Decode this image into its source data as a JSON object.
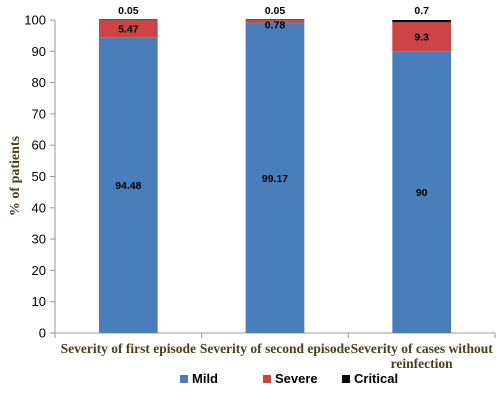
{
  "chart_data": {
    "type": "bar",
    "stacked": true,
    "categories": [
      [
        "Severity of first episode"
      ],
      [
        "Severity of second episode"
      ],
      [
        "Severity of cases without",
        "reinfection"
      ]
    ],
    "series": [
      {
        "name": "Mild",
        "color": "#4a7ebb",
        "values": [
          94.48,
          99.17,
          90
        ],
        "labels": [
          "94.48",
          "99.17",
          "90"
        ]
      },
      {
        "name": "Severe",
        "color": "#cc4444",
        "values": [
          5.47,
          0.78,
          9.3
        ],
        "labels": [
          "5.47",
          "0.78",
          "9.3"
        ]
      },
      {
        "name": "Critical",
        "color": "#000000",
        "values": [
          0.05,
          0.05,
          0.7
        ],
        "labels": [
          "0.05",
          "0.05",
          "0.7"
        ]
      }
    ],
    "title": "",
    "xlabel": "",
    "ylabel": "% of patients",
    "ylim": [
      0,
      100
    ],
    "yticks": [
      0,
      10,
      20,
      30,
      40,
      50,
      60,
      70,
      80,
      90,
      100
    ],
    "grid": false,
    "legend": "bottom"
  }
}
